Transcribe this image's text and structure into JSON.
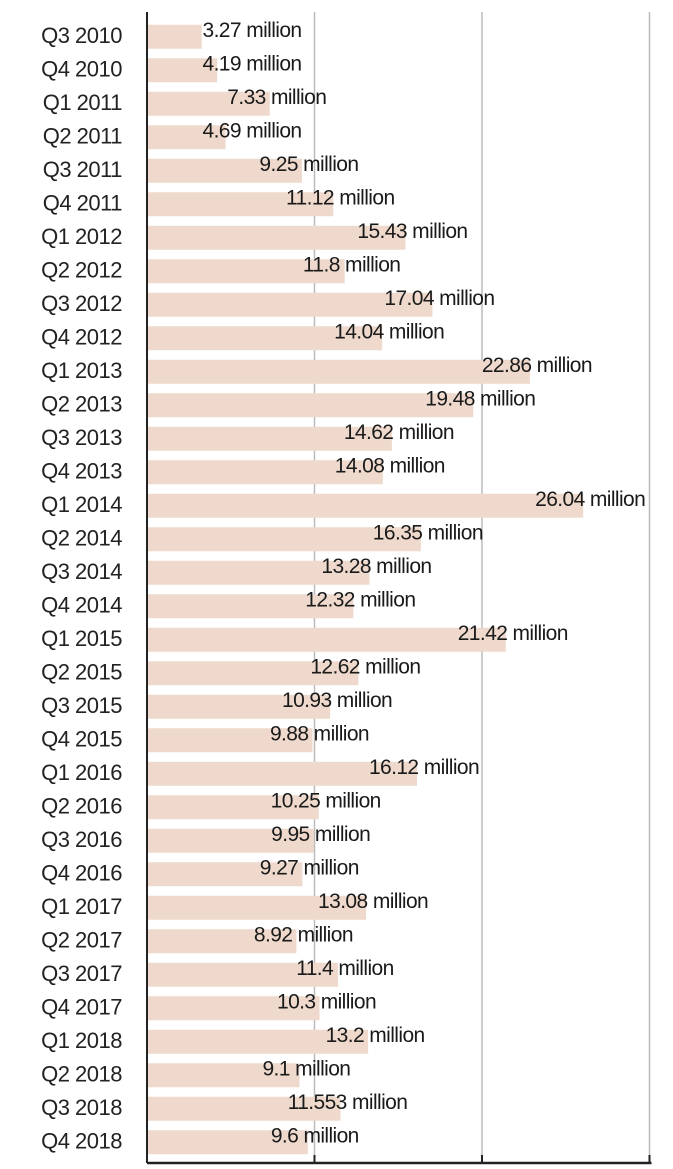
{
  "chart_data": {
    "type": "bar",
    "orientation": "horizontal",
    "title": "",
    "xlabel": "",
    "ylabel": "",
    "xlim": [
      0,
      30
    ],
    "grid": "vertical",
    "legend": "none",
    "bar_color": "#eed9cc",
    "gridline_color": "#bbbbbb",
    "axis_color": "#222222",
    "categories": [
      "Q3 2010",
      "Q4 2010",
      "Q1 2011",
      "Q2 2011",
      "Q3 2011",
      "Q4 2011",
      "Q1 2012",
      "Q2 2012",
      "Q3 2012",
      "Q4 2012",
      "Q1 2013",
      "Q2 2013",
      "Q3 2013",
      "Q4 2013",
      "Q1 2014",
      "Q2 2014",
      "Q3 2014",
      "Q4 2014",
      "Q1 2015",
      "Q2 2015",
      "Q3 2015",
      "Q4 2015",
      "Q1 2016",
      "Q2 2016",
      "Q3 2016",
      "Q4 2016",
      "Q1 2017",
      "Q2 2017",
      "Q3 2017",
      "Q4 2017",
      "Q1 2018",
      "Q2 2018",
      "Q3 2018",
      "Q4 2018"
    ],
    "values": [
      3.27,
      4.19,
      7.33,
      4.69,
      9.25,
      11.12,
      15.43,
      11.8,
      17.04,
      14.04,
      22.86,
      19.48,
      14.62,
      14.08,
      26.04,
      16.35,
      13.28,
      12.32,
      21.42,
      12.62,
      10.93,
      9.88,
      16.12,
      10.25,
      9.95,
      9.27,
      13.08,
      8.92,
      11.4,
      10.3,
      13.2,
      9.1,
      11.553,
      9.6
    ],
    "data_labels": [
      "3.27 million",
      "4.19 million",
      "7.33 million",
      "4.69 million",
      "9.25 million",
      "11.12 million",
      "15.43 million",
      "11.8 million",
      "17.04 million",
      "14.04 million",
      "22.86 million",
      "19.48 million",
      "14.62 million",
      "14.08 million",
      "26.04 million",
      "16.35 million",
      "13.28 million",
      "12.32 million",
      "21.42 million",
      "12.62 million",
      "10.93 million",
      "9.88 million",
      "16.12 million",
      "10.25 million",
      "9.95 million",
      "9.27 million",
      "13.08 million",
      "8.92 million",
      "11.4 million",
      "10.3 million",
      "13.2 million",
      "9.1 million",
      "11.553 million",
      "9.6 million"
    ]
  }
}
